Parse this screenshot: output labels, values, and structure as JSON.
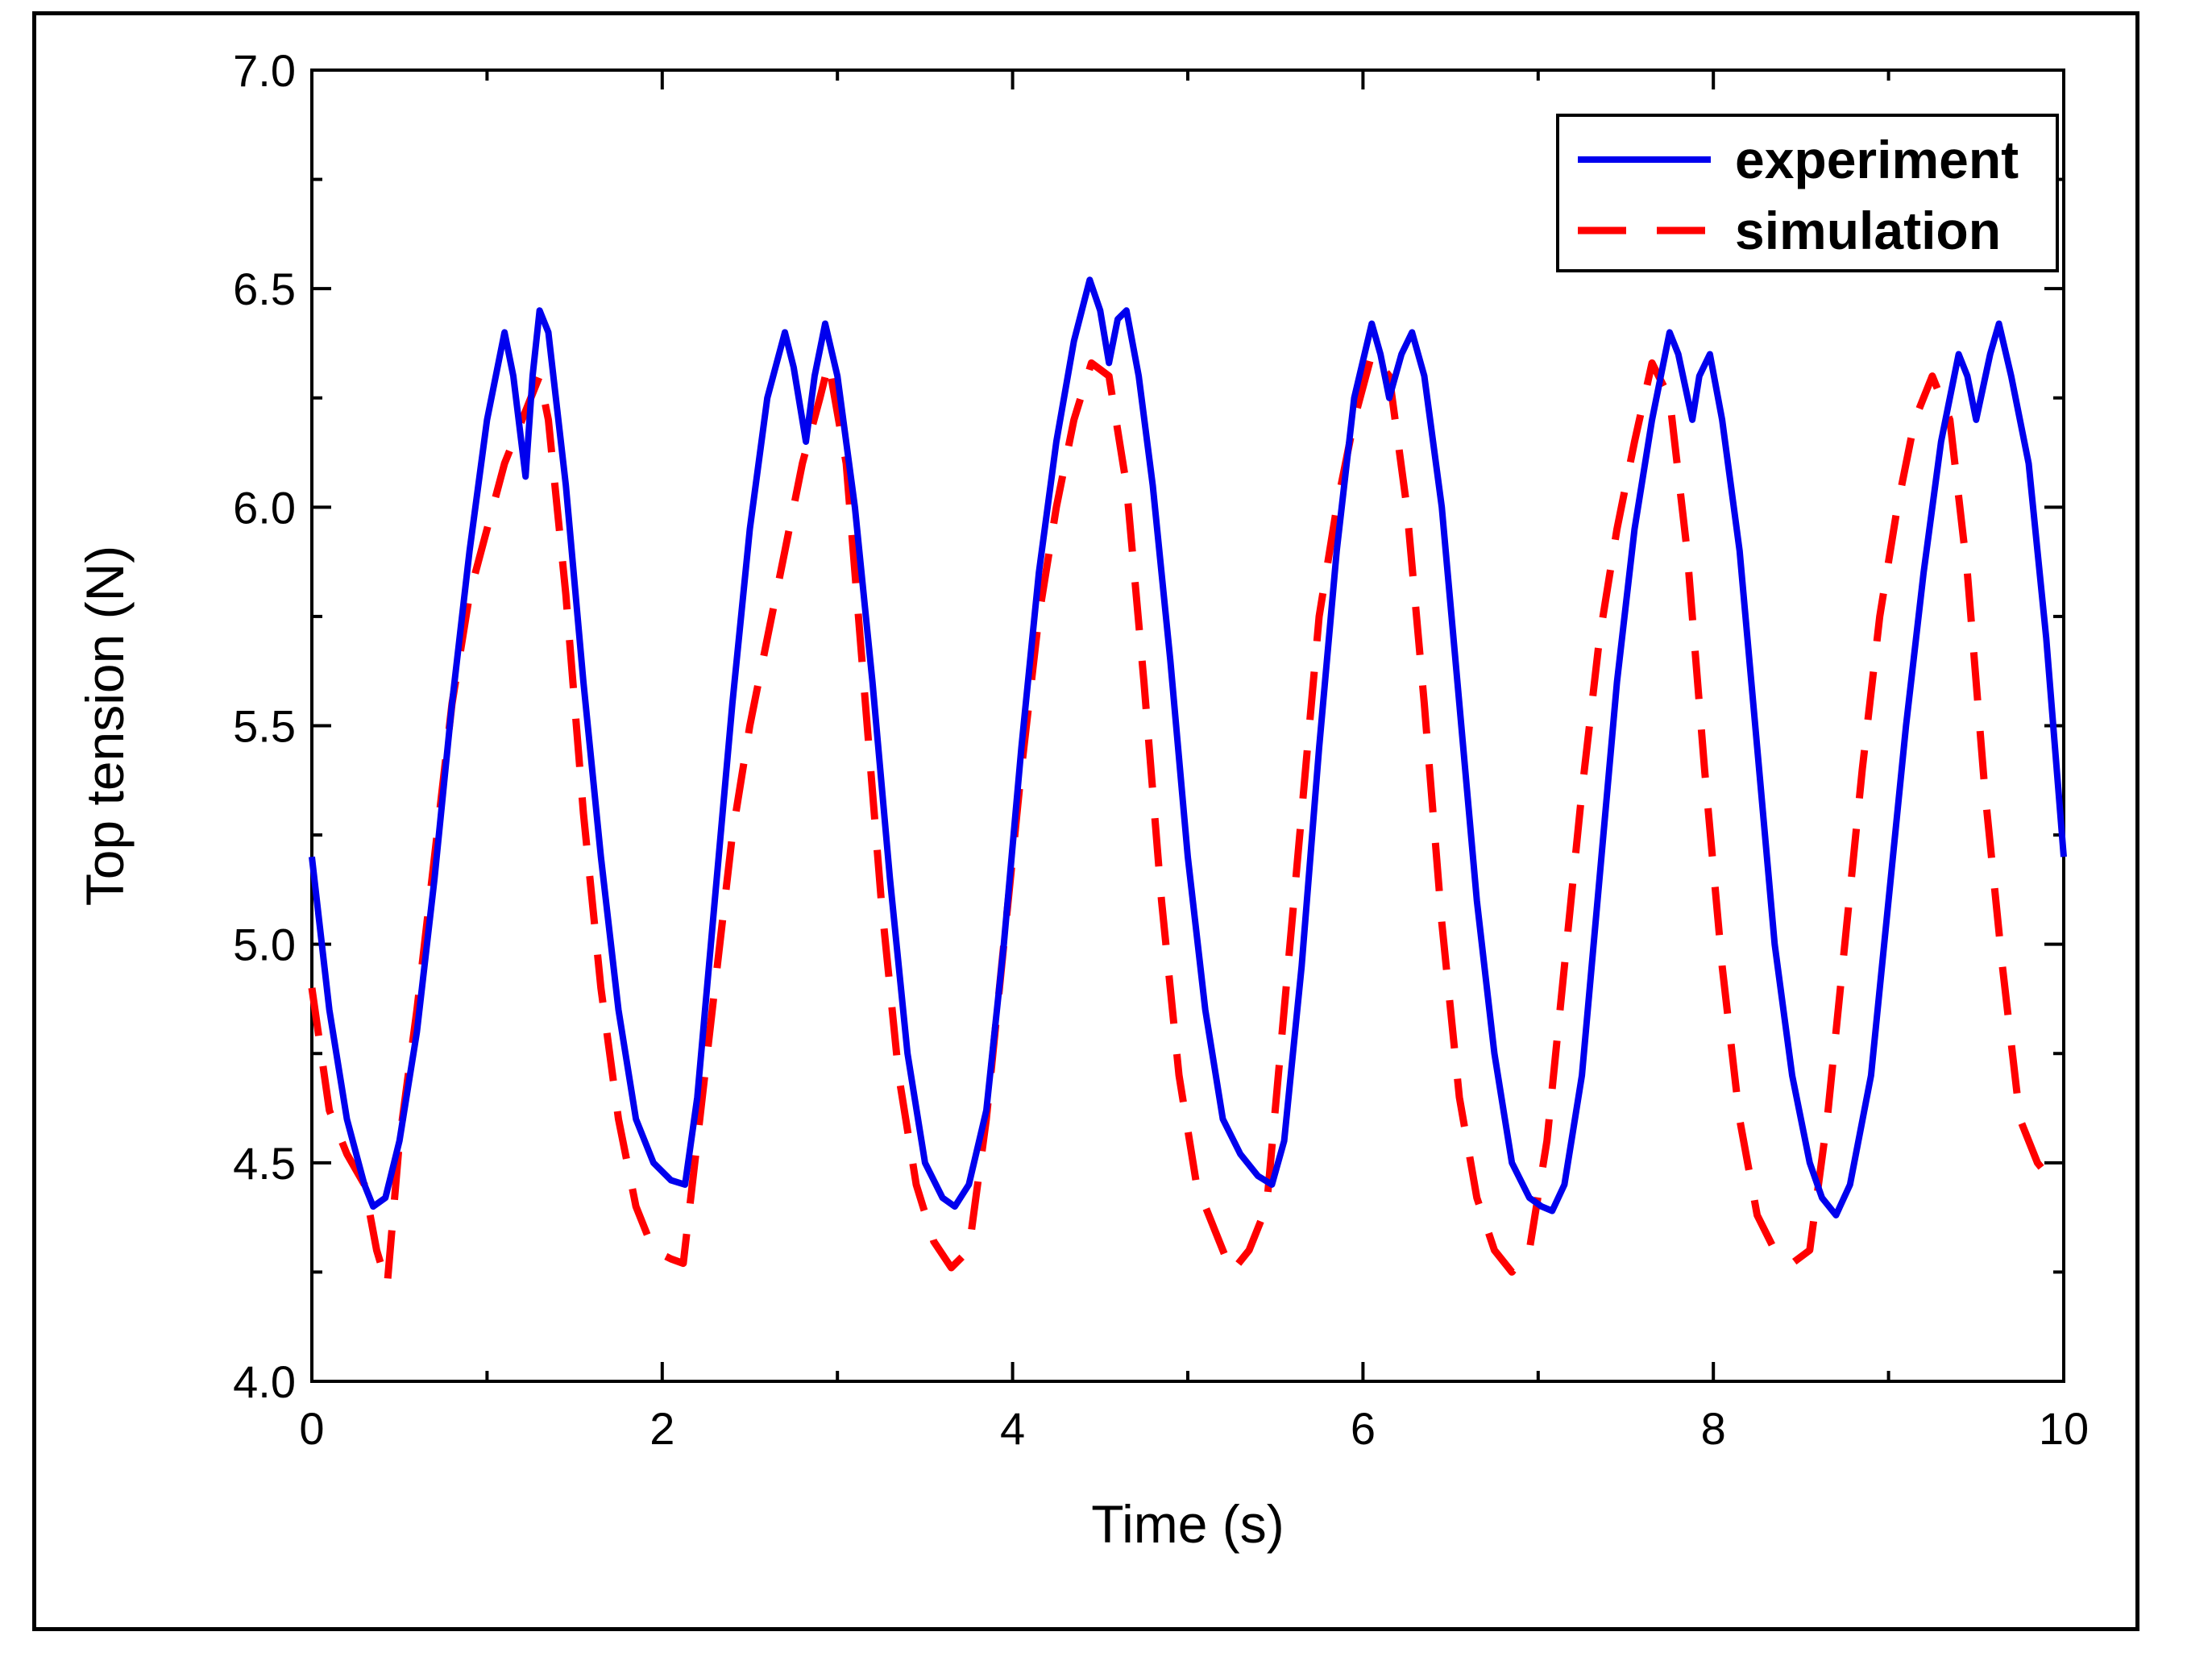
{
  "chart_data": {
    "type": "line",
    "title": "",
    "xlabel": "Time (s)",
    "ylabel": "Top tension (N)",
    "xlim": [
      0,
      10
    ],
    "ylim": [
      4.0,
      7.0
    ],
    "xticks": [
      0,
      2,
      4,
      6,
      8,
      10
    ],
    "xtick_labels": [
      "0",
      "2",
      "4",
      "6",
      "8",
      "10"
    ],
    "yticks": [
      4.0,
      4.5,
      5.0,
      5.5,
      6.0,
      6.5,
      7.0
    ],
    "ytick_labels": [
      "4.0",
      "4.5",
      "5.0",
      "5.5",
      "6.0",
      "6.5",
      "7.0"
    ],
    "legend_position": "top-right",
    "grid": false,
    "series": [
      {
        "name": "experiment",
        "style": "solid",
        "color": "#0000ee",
        "x": [
          0.0,
          0.1,
          0.2,
          0.3,
          0.35,
          0.42,
          0.5,
          0.6,
          0.7,
          0.8,
          0.9,
          1.0,
          1.1,
          1.15,
          1.22,
          1.26,
          1.3,
          1.35,
          1.45,
          1.55,
          1.65,
          1.75,
          1.85,
          1.95,
          2.05,
          2.13,
          2.2,
          2.3,
          2.4,
          2.5,
          2.6,
          2.7,
          2.75,
          2.82,
          2.87,
          2.93,
          3.0,
          3.1,
          3.2,
          3.3,
          3.4,
          3.5,
          3.6,
          3.67,
          3.75,
          3.85,
          3.95,
          4.05,
          4.15,
          4.25,
          4.35,
          4.44,
          4.5,
          4.55,
          4.6,
          4.65,
          4.72,
          4.8,
          4.9,
          5.0,
          5.1,
          5.2,
          5.3,
          5.4,
          5.48,
          5.55,
          5.65,
          5.75,
          5.85,
          5.95,
          6.05,
          6.1,
          6.15,
          6.22,
          6.28,
          6.35,
          6.45,
          6.55,
          6.65,
          6.75,
          6.85,
          6.95,
          7.02,
          7.08,
          7.15,
          7.25,
          7.35,
          7.45,
          7.55,
          7.65,
          7.75,
          7.8,
          7.88,
          7.92,
          7.98,
          8.05,
          8.15,
          8.25,
          8.35,
          8.45,
          8.55,
          8.62,
          8.7,
          8.78,
          8.9,
          9.0,
          9.1,
          9.2,
          9.3,
          9.4,
          9.45,
          9.5,
          9.58,
          9.63,
          9.7,
          9.8,
          9.9,
          10.0
        ],
        "y": [
          5.2,
          4.85,
          4.6,
          4.45,
          4.4,
          4.42,
          4.55,
          4.8,
          5.15,
          5.55,
          5.9,
          6.2,
          6.4,
          6.3,
          6.07,
          6.3,
          6.45,
          6.4,
          6.05,
          5.6,
          5.2,
          4.85,
          4.6,
          4.5,
          4.46,
          4.45,
          4.65,
          5.1,
          5.55,
          5.95,
          6.25,
          6.4,
          6.32,
          6.15,
          6.3,
          6.42,
          6.3,
          6.0,
          5.6,
          5.15,
          4.75,
          4.5,
          4.42,
          4.4,
          4.45,
          4.62,
          5.0,
          5.45,
          5.85,
          6.15,
          6.38,
          6.52,
          6.45,
          6.33,
          6.43,
          6.45,
          6.3,
          6.05,
          5.65,
          5.2,
          4.85,
          4.6,
          4.52,
          4.47,
          4.45,
          4.55,
          4.95,
          5.45,
          5.9,
          6.25,
          6.42,
          6.35,
          6.25,
          6.35,
          6.4,
          6.3,
          6.0,
          5.55,
          5.1,
          4.75,
          4.5,
          4.42,
          4.4,
          4.39,
          4.45,
          4.7,
          5.15,
          5.6,
          5.95,
          6.2,
          6.4,
          6.35,
          6.2,
          6.3,
          6.35,
          6.2,
          5.9,
          5.45,
          5.0,
          4.7,
          4.5,
          4.42,
          4.38,
          4.45,
          4.7,
          5.1,
          5.5,
          5.85,
          6.15,
          6.35,
          6.3,
          6.2,
          6.35,
          6.42,
          6.3,
          6.1,
          5.7,
          5.2
        ]
      },
      {
        "name": "simulation",
        "style": "dashed",
        "color": "#ff0000",
        "x": [
          0.0,
          0.1,
          0.2,
          0.3,
          0.37,
          0.43,
          0.5,
          0.6,
          0.7,
          0.8,
          0.9,
          1.0,
          1.1,
          1.2,
          1.3,
          1.35,
          1.45,
          1.55,
          1.65,
          1.75,
          1.85,
          1.95,
          2.05,
          2.12,
          2.2,
          2.3,
          2.4,
          2.5,
          2.6,
          2.7,
          2.8,
          2.9,
          2.95,
          3.05,
          3.15,
          3.25,
          3.35,
          3.45,
          3.55,
          3.65,
          3.75,
          3.85,
          3.95,
          4.05,
          4.15,
          4.25,
          4.35,
          4.45,
          4.55,
          4.65,
          4.75,
          4.85,
          4.95,
          5.05,
          5.15,
          5.25,
          5.35,
          5.45,
          5.55,
          5.65,
          5.75,
          5.85,
          5.95,
          6.05,
          6.15,
          6.25,
          6.35,
          6.45,
          6.55,
          6.65,
          6.75,
          6.85,
          6.95,
          7.05,
          7.15,
          7.25,
          7.35,
          7.45,
          7.55,
          7.65,
          7.75,
          7.85,
          7.95,
          8.05,
          8.15,
          8.25,
          8.35,
          8.45,
          8.55,
          8.65,
          8.75,
          8.85,
          8.95,
          9.05,
          9.15,
          9.25,
          9.35,
          9.45,
          9.55,
          9.65,
          9.75,
          9.85,
          9.95
        ],
        "y": [
          4.9,
          4.62,
          4.52,
          4.45,
          4.3,
          4.22,
          4.55,
          4.85,
          5.2,
          5.55,
          5.8,
          5.95,
          6.1,
          6.2,
          6.3,
          6.2,
          5.8,
          5.3,
          4.9,
          4.6,
          4.4,
          4.3,
          4.28,
          4.27,
          4.55,
          4.9,
          5.25,
          5.5,
          5.7,
          5.9,
          6.1,
          6.25,
          6.33,
          6.1,
          5.6,
          5.1,
          4.7,
          4.45,
          4.32,
          4.26,
          4.3,
          4.6,
          5.0,
          5.4,
          5.75,
          6.0,
          6.2,
          6.33,
          6.3,
          6.05,
          5.6,
          5.1,
          4.7,
          4.45,
          4.35,
          4.25,
          4.3,
          4.4,
          4.85,
          5.3,
          5.75,
          6.0,
          6.2,
          6.35,
          6.3,
          6.0,
          5.55,
          5.05,
          4.65,
          4.42,
          4.3,
          4.25,
          4.3,
          4.55,
          4.95,
          5.35,
          5.7,
          5.95,
          6.15,
          6.33,
          6.25,
          5.9,
          5.4,
          4.95,
          4.6,
          4.38,
          4.3,
          4.27,
          4.3,
          4.6,
          5.0,
          5.4,
          5.75,
          6.0,
          6.2,
          6.3,
          6.2,
          5.85,
          5.35,
          4.95,
          4.6,
          4.5,
          4.45
        ]
      }
    ]
  }
}
